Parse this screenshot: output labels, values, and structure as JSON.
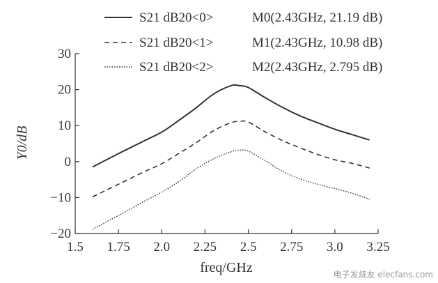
{
  "chart_data": {
    "type": "line",
    "title": "",
    "xlabel": "freq/GHz",
    "ylabel": "Y0/dB",
    "xlim": [
      1.5,
      3.25
    ],
    "ylim": [
      -20,
      30
    ],
    "xticks": [
      1.5,
      1.75,
      2.0,
      2.25,
      2.5,
      2.75,
      3.0,
      3.25
    ],
    "xtick_labels": [
      "1.5",
      "1.75",
      "2.0",
      "2.25",
      "2.5",
      "2.75",
      "3.0",
      "3.25"
    ],
    "yticks": [
      -20,
      -10,
      0,
      10,
      20,
      30
    ],
    "ytick_labels": [
      "−20",
      "−10",
      "0",
      "10",
      "20",
      "30"
    ],
    "grid": false,
    "legend_position": "top",
    "series": [
      {
        "name": "S21 dB20<0>",
        "marker_label": "M0(2.43GHz, 21.19 dB)",
        "style": "solid",
        "x": [
          1.6,
          1.75,
          1.9,
          2.0,
          2.1,
          2.2,
          2.3,
          2.4,
          2.45,
          2.5,
          2.6,
          2.7,
          2.8,
          2.9,
          3.0,
          3.1,
          3.2
        ],
        "y": [
          -1.5,
          2.2,
          5.8,
          8.2,
          11.5,
          15.0,
          18.8,
          21.1,
          21.1,
          20.6,
          17.7,
          15.0,
          12.7,
          10.8,
          9.0,
          7.5,
          6.0
        ]
      },
      {
        "name": "S21 dB20<1>",
        "marker_label": "M1(2.43GHz, 10.98 dB)",
        "style": "dashed",
        "x": [
          1.6,
          1.75,
          1.9,
          2.0,
          2.1,
          2.2,
          2.3,
          2.4,
          2.45,
          2.5,
          2.6,
          2.7,
          2.8,
          2.9,
          3.0,
          3.1,
          3.2
        ],
        "y": [
          -9.8,
          -6.3,
          -2.8,
          -0.6,
          2.3,
          5.3,
          8.6,
          10.8,
          11.2,
          11.0,
          8.2,
          5.8,
          3.8,
          2.0,
          0.5,
          -0.5,
          -1.8
        ]
      },
      {
        "name": "S21 dB20<2>",
        "marker_label": "M2(2.43GHz, 2.795 dB)",
        "style": "dotted",
        "x": [
          1.6,
          1.75,
          1.9,
          2.0,
          2.1,
          2.2,
          2.3,
          2.4,
          2.45,
          2.5,
          2.6,
          2.7,
          2.8,
          2.9,
          3.0,
          3.1,
          3.2
        ],
        "y": [
          -18.8,
          -15.0,
          -11.0,
          -8.5,
          -5.5,
          -2.0,
          0.8,
          2.7,
          3.2,
          2.9,
          0.2,
          -2.8,
          -4.8,
          -6.3,
          -7.5,
          -8.8,
          -10.5
        ]
      }
    ]
  },
  "colors": {
    "line": "#333333",
    "axis": "#333333",
    "background": "#ffffff"
  },
  "watermark": "电子发烧友 elecfans.com"
}
